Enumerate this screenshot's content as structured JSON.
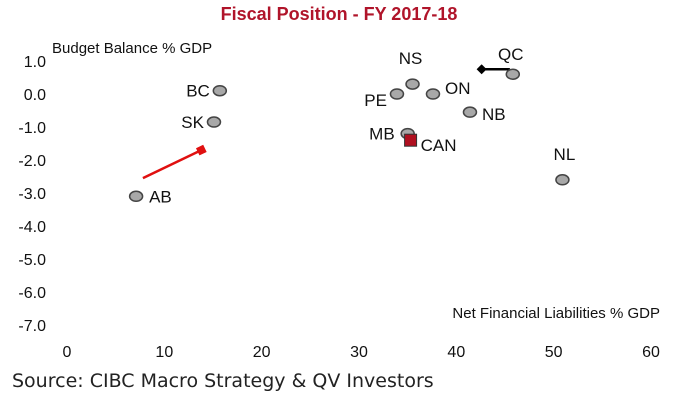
{
  "chart_data": {
    "type": "scatter",
    "title": "Fiscal Position - FY 2017-18",
    "xlabel": "Net Financial Liabilities % GDP",
    "ylabel": "Budget Balance % GDP",
    "xlim": [
      0,
      60
    ],
    "ylim": [
      -7.0,
      1.0
    ],
    "xticks": [
      "0",
      "10",
      "20",
      "30",
      "40",
      "50",
      "60"
    ],
    "yticks": [
      "1.0",
      "0.0",
      "-1.0",
      "-2.0",
      "-3.0",
      "-4.0",
      "-5.0",
      "-6.0",
      "-7.0"
    ],
    "grid": false,
    "points": [
      {
        "label": "BC",
        "x": 15.7,
        "y": 0.1
      },
      {
        "label": "SK",
        "x": 15.1,
        "y": -0.85
      },
      {
        "label": "AB",
        "x": 7.1,
        "y": -3.1
      },
      {
        "label": "NS",
        "x": 35.5,
        "y": 0.3
      },
      {
        "label": "PE",
        "x": 33.9,
        "y": 0.0
      },
      {
        "label": "ON",
        "x": 37.6,
        "y": 0.0
      },
      {
        "label": "QC",
        "x": 45.8,
        "y": 0.6
      },
      {
        "label": "NB",
        "x": 41.4,
        "y": -0.55
      },
      {
        "label": "MB",
        "x": 35.0,
        "y": -1.2
      },
      {
        "label": "CAN",
        "x": 35.3,
        "y": -1.4
      },
      {
        "label": "NL",
        "x": 50.9,
        "y": -2.6
      }
    ],
    "arrows": [
      {
        "from": [
          7.8,
          -2.55
        ],
        "to": [
          13.8,
          -1.7
        ],
        "color": "#e01010"
      },
      {
        "from": [
          45.5,
          0.75
        ],
        "to": [
          42.6,
          0.75
        ],
        "color": "#000000"
      }
    ],
    "colors": {
      "point_fill": "#a8a8a8",
      "point_stroke": "#444444",
      "can_fill": "#b01020",
      "title": "#b0142a"
    }
  },
  "source": "Source: CIBC Macro Strategy & QV Investors"
}
